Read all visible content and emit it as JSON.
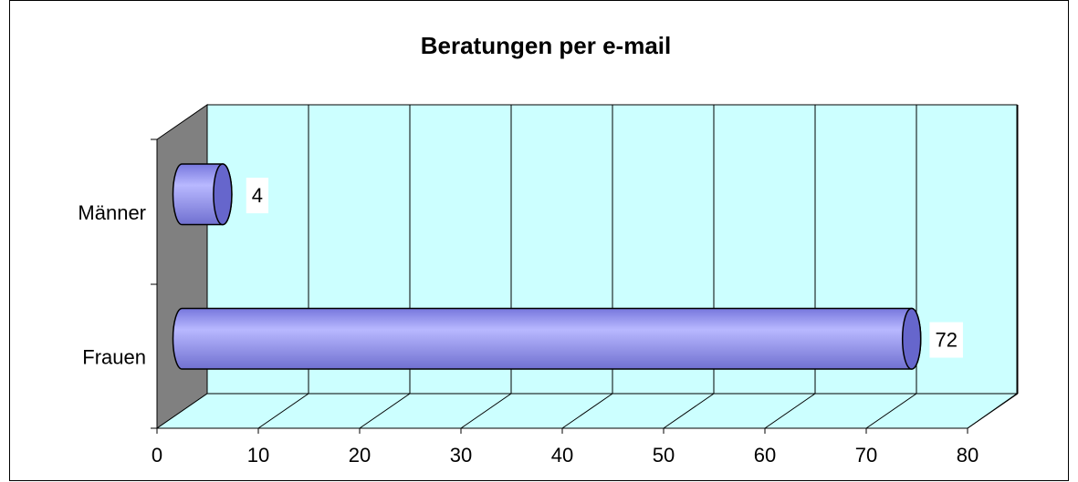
{
  "chart_data": {
    "type": "bar",
    "orientation": "horizontal",
    "title": "Beratungen per e-mail",
    "categories": [
      "Männer",
      "Frauen"
    ],
    "values": [
      4,
      72
    ],
    "color": "#9999ff",
    "xlim": [
      0,
      80
    ],
    "xticks": [
      0,
      10,
      20,
      30,
      40,
      50,
      60,
      70,
      80
    ],
    "grid": true
  }
}
